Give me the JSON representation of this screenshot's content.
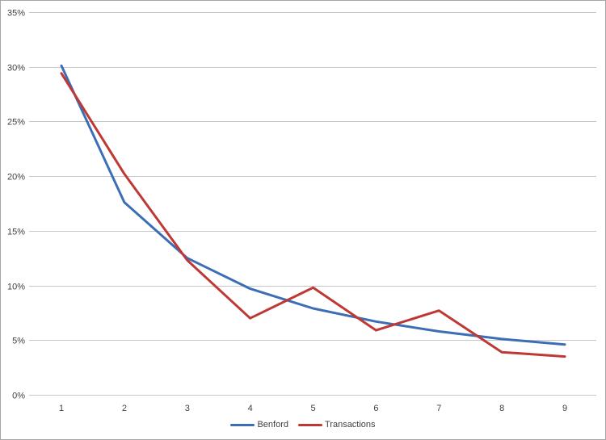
{
  "chart": {
    "background_color": "#ffffff",
    "outer_border_color": "#a6a6a6",
    "gridline_color": "#c6c6c6",
    "axis_line_color": "#c6c6c6",
    "axis_text_color": "#404040"
  },
  "chart_data": {
    "type": "line",
    "title": "",
    "xlabel": "",
    "ylabel": "",
    "categories": [
      "1",
      "2",
      "3",
      "4",
      "5",
      "6",
      "7",
      "8",
      "9"
    ],
    "series": [
      {
        "name": "Benford",
        "color": "#3c6eb5",
        "values": [
          30.1,
          17.6,
          12.5,
          9.7,
          7.9,
          6.7,
          5.8,
          5.1,
          4.6
        ]
      },
      {
        "name": "Transactions",
        "color": "#be3935",
        "values": [
          29.4,
          20.2,
          12.3,
          7.0,
          9.8,
          5.9,
          7.7,
          3.9,
          3.5
        ]
      }
    ],
    "ylim": [
      0,
      35
    ],
    "ytick_step": 5,
    "ytick_labels": [
      "0%",
      "5%",
      "10%",
      "15%",
      "20%",
      "25%",
      "30%",
      "35%"
    ],
    "grid": true,
    "legend_position": "bottom-center"
  }
}
